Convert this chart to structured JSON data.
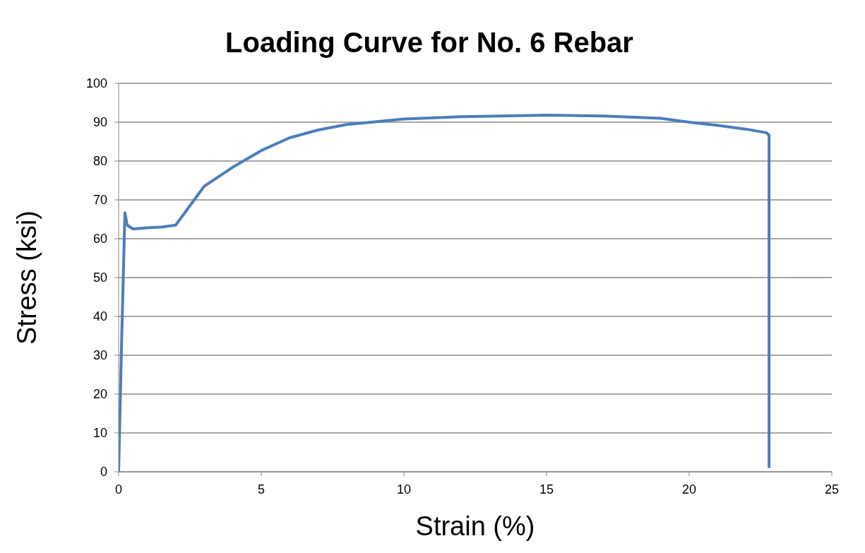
{
  "chart_data": {
    "type": "line",
    "title": "Loading Curve for No. 6 Rebar",
    "xlabel": "Strain (%)",
    "ylabel": "Stress (ksi)",
    "x": [
      0,
      0.1,
      0.22,
      0.3,
      0.5,
      1,
      1.5,
      2,
      2.2,
      2.5,
      3,
      4,
      5,
      6,
      7,
      8,
      10,
      12,
      15,
      17,
      19,
      20,
      21,
      22,
      22.7,
      22.8,
      22.8
    ],
    "series": [
      {
        "color": "#4a7ebb",
        "values": [
          0,
          32,
          66.7,
          63.5,
          62.5,
          62.8,
          63,
          63.5,
          65.5,
          68.5,
          73.5,
          78.4,
          82.7,
          86,
          88,
          89.4,
          90.8,
          91.4,
          91.8,
          91.6,
          91,
          90,
          89.2,
          88.2,
          87.3,
          86.7,
          1
        ]
      }
    ],
    "xlim": [
      0,
      25
    ],
    "xticks": [
      0,
      5,
      10,
      15,
      20,
      25
    ],
    "ylim": [
      0,
      100
    ],
    "yticks": [
      0,
      10,
      20,
      30,
      40,
      50,
      60,
      70,
      80,
      90,
      100
    ],
    "grid": "y",
    "legend": false,
    "marker": "none",
    "line_style": "solid"
  }
}
